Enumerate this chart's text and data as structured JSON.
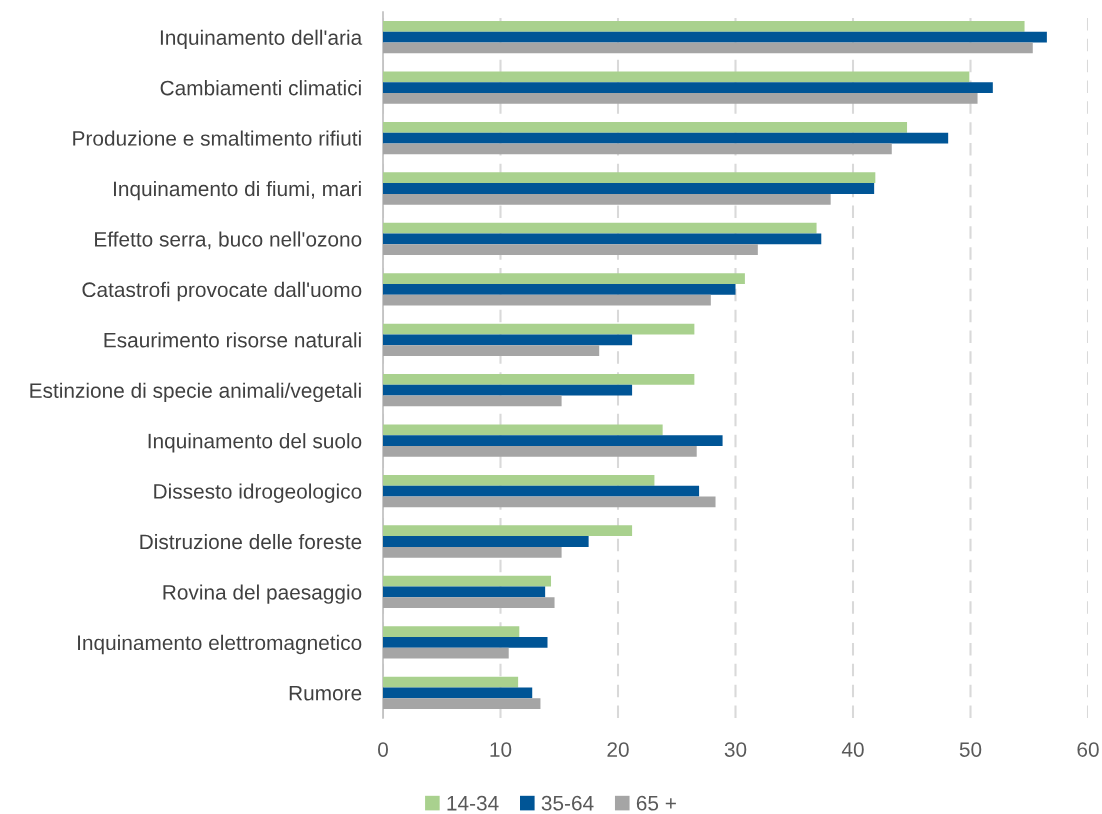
{
  "chart_data": {
    "type": "bar",
    "orientation": "horizontal",
    "categories": [
      "Inquinamento dell'aria",
      "Cambiamenti climatici",
      "Produzione e smaltimento rifiuti",
      "Inquinamento di fiumi, mari",
      "Effetto serra, buco nell'ozono",
      "Catastrofi provocate dall'uomo",
      "Esaurimento risorse naturali",
      "Estinzione di specie animali/vegetali",
      "Inquinamento del suolo",
      "Dissesto idrogeologico",
      "Distruzione delle foreste",
      "Rovina del paesaggio",
      "Inquinamento elettromagnetico",
      "Rumore"
    ],
    "series": [
      {
        "name": "14-34",
        "color": "#a9d18e",
        "values": [
          54.6,
          49.9,
          44.6,
          41.9,
          36.9,
          30.8,
          26.5,
          26.5,
          23.8,
          23.1,
          21.2,
          14.3,
          11.6,
          11.5
        ]
      },
      {
        "name": "35-64",
        "color": "#005596",
        "values": [
          56.5,
          51.9,
          48.1,
          41.8,
          37.3,
          30.0,
          21.2,
          21.2,
          28.9,
          26.9,
          17.5,
          13.8,
          14.0,
          12.7
        ]
      },
      {
        "name": "65 +",
        "color": "#a5a5a5",
        "values": [
          55.3,
          50.6,
          43.3,
          38.1,
          31.9,
          27.9,
          18.4,
          15.2,
          26.7,
          28.3,
          15.2,
          14.6,
          10.7,
          13.4
        ]
      }
    ],
    "xlim": [
      0,
      60
    ],
    "xticks": [
      0,
      10,
      20,
      30,
      40,
      50,
      60
    ],
    "grid": "x",
    "legend": "bottom"
  }
}
